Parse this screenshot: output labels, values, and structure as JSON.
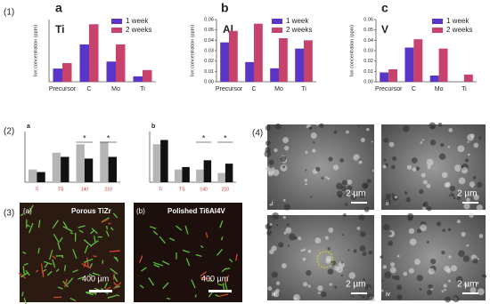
{
  "panels": {
    "p1": "(1)",
    "p2": "(2)",
    "p3": "(3)",
    "p4": "(4)"
  },
  "chart_data": [
    {
      "type": "bar",
      "label": "a",
      "title": "Ti",
      "y_label": "Ion concentration (ppm)",
      "categories": [
        "Precursor",
        "C",
        "Mo",
        "Ti"
      ],
      "ylim": [
        0,
        0.8
      ],
      "series": [
        {
          "name": "1 week",
          "color": "#5b35c8",
          "values": [
            0.17,
            0.48,
            0.26,
            0.07
          ]
        },
        {
          "name": "2 weeks",
          "color": "#c7436b",
          "values": [
            0.24,
            0.74,
            0.48,
            0.15
          ]
        }
      ]
    },
    {
      "type": "bar",
      "label": "b",
      "title": "Al",
      "y_label": "Ion concentration (ppm)",
      "categories": [
        "Precursor",
        "C",
        "Mo",
        "Ti"
      ],
      "ylim": [
        0,
        0.06
      ],
      "yticks": [
        {
          "value": 0,
          "label": "0.00"
        },
        {
          "value": 0.01,
          "label": "0.01"
        },
        {
          "value": 0.02,
          "label": "0.02"
        },
        {
          "value": 0.03,
          "label": "0.03"
        },
        {
          "value": 0.04,
          "label": "0.04"
        },
        {
          "value": 0.05,
          "label": "0.05"
        },
        {
          "value": 0.06,
          "label": "0.06"
        }
      ],
      "series": [
        {
          "name": "1 week",
          "color": "#5b35c8",
          "values": [
            0.038,
            0.019,
            0.013,
            0.032
          ]
        },
        {
          "name": "2 weeks",
          "color": "#c7436b",
          "values": [
            0.049,
            0.056,
            0.042,
            0.04
          ]
        }
      ]
    },
    {
      "type": "bar",
      "label": "c",
      "title": "V",
      "y_label": "Ion concentration (ppm)",
      "categories": [
        "Precursor",
        "C",
        "Mo",
        "Ti"
      ],
      "ylim": [
        0,
        0.06
      ],
      "yticks": [
        {
          "value": 0,
          "label": "0.00"
        },
        {
          "value": 0.01,
          "label": "0.01"
        },
        {
          "value": 0.02,
          "label": "0.02"
        },
        {
          "value": 0.03,
          "label": "0.03"
        },
        {
          "value": 0.04,
          "label": "0.04"
        },
        {
          "value": 0.05,
          "label": "0.05"
        },
        {
          "value": 0.06,
          "label": "0.06"
        }
      ],
      "series": [
        {
          "name": "1 week",
          "color": "#5b35c8",
          "values": [
            0.009,
            0.033,
            0.006,
            0
          ]
        },
        {
          "name": "2 weeks",
          "color": "#c7436b",
          "values": [
            0.012,
            0.041,
            0.032,
            0.007
          ]
        }
      ]
    },
    {
      "type": "bar",
      "label": "a",
      "categories": [
        "Ti",
        "TS",
        "140",
        "210"
      ],
      "ylim": [
        0,
        6
      ],
      "annotations": [
        "*",
        "*"
      ],
      "series": [
        {
          "color": "#b5b5b5",
          "values": [
            1.5,
            3.5,
            4.5,
            4.8
          ]
        },
        {
          "color": "#111111",
          "values": [
            1.2,
            3.0,
            2.8,
            3.0
          ]
        }
      ]
    },
    {
      "type": "bar",
      "label": "b",
      "categories": [
        "Ti",
        "TS",
        "140",
        "210"
      ],
      "ylim": [
        0,
        6
      ],
      "annotations": [
        "*",
        "*"
      ],
      "series": [
        {
          "color": "#b5b5b5",
          "values": [
            4.5,
            1.5,
            1.5,
            1.1
          ]
        },
        {
          "color": "#111111",
          "values": [
            5.0,
            1.8,
            2.6,
            2.2
          ]
        }
      ]
    }
  ],
  "images": {
    "fluor_a": {
      "tag": "(a)",
      "caption": "Porous TiZr",
      "scale": "400 µm"
    },
    "fluor_b": {
      "tag": "(b)",
      "caption": "Polished Ti6Al4V",
      "scale": "400 µm"
    },
    "sem": [
      {
        "tag": "i",
        "scale": "2 µm"
      },
      {
        "tag": "ii",
        "scale": "2 µm"
      },
      {
        "tag": "iii",
        "scale": "2 µm"
      },
      {
        "tag": "iv",
        "scale": "2 µm"
      }
    ]
  }
}
